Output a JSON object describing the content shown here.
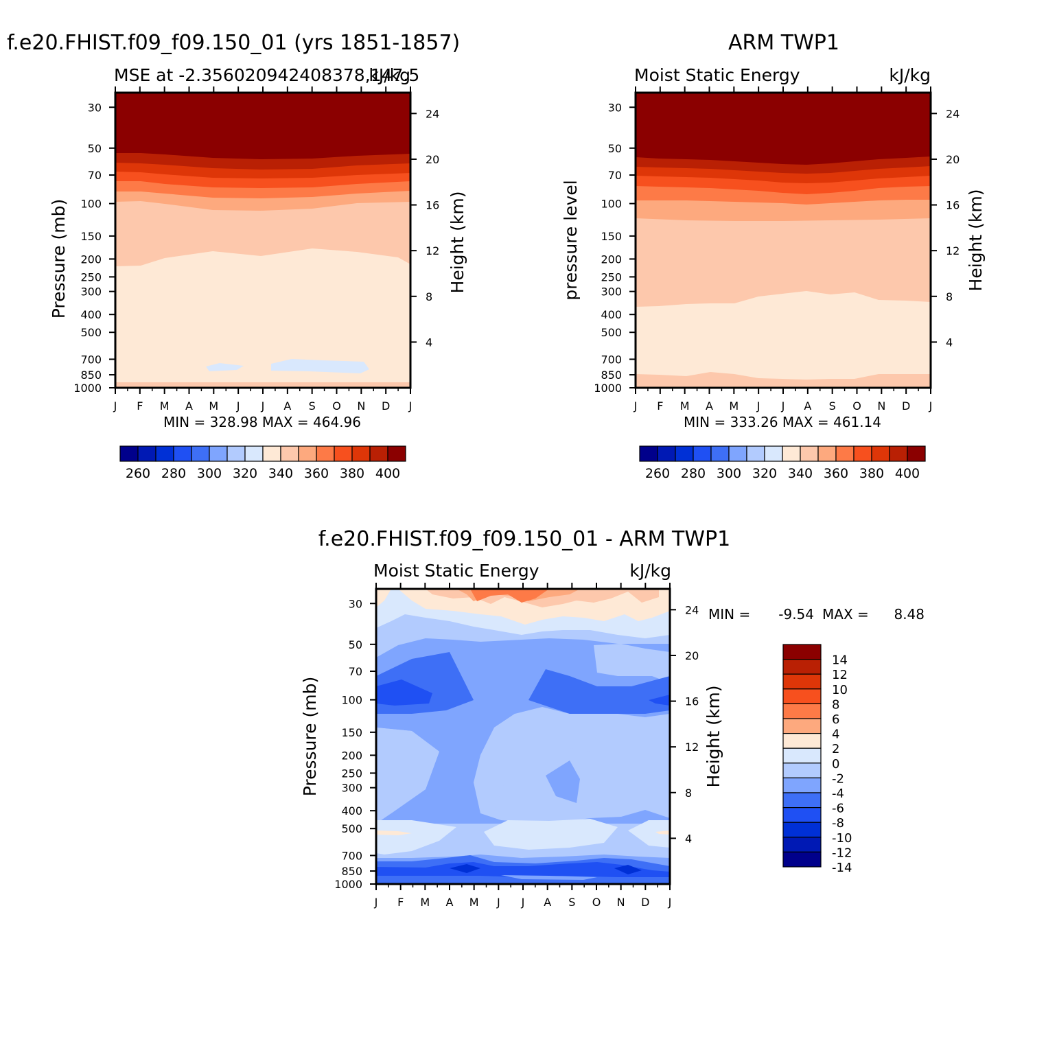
{
  "chart_data": [
    {
      "type": "heatmap",
      "title": "f.e20.FHIST.f09_f09.150_01 (yrs 1851-1857)",
      "subtitle_left": "MSE at -2.356020942408378,147.5",
      "subtitle_right": "kJ/kg",
      "ylabel": "Pressure (mb)",
      "ylabel_right": "Height (km)",
      "x_ticks": [
        "J",
        "F",
        "M",
        "A",
        "M",
        "J",
        "J",
        "A",
        "S",
        "O",
        "N",
        "D",
        "J"
      ],
      "y_ticks": [
        "30",
        "50",
        "70",
        "100",
        "150",
        "200",
        "250",
        "300",
        "400",
        "500",
        "700",
        "850",
        "1000"
      ],
      "y_ticks_right": [
        "24",
        "20",
        "16",
        "12",
        "8",
        "4"
      ],
      "stats": "MIN = 328.98 MAX = 464.96",
      "colorbar_labels": [
        "260",
        "280",
        "300",
        "320",
        "340",
        "360",
        "380",
        "400"
      ],
      "min": 328.98,
      "max": 464.96
    },
    {
      "type": "heatmap",
      "title": "ARM TWP1",
      "subtitle_left": "Moist Static Energy",
      "subtitle_right": "kJ/kg",
      "ylabel": "pressure level",
      "ylabel_right": "Height (km)",
      "x_ticks": [
        "J",
        "F",
        "M",
        "A",
        "M",
        "J",
        "J",
        "A",
        "S",
        "O",
        "N",
        "D",
        "J"
      ],
      "y_ticks": [
        "30",
        "50",
        "70",
        "100",
        "150",
        "200",
        "250",
        "300",
        "400",
        "500",
        "700",
        "850",
        "1000"
      ],
      "y_ticks_right": [
        "24",
        "20",
        "16",
        "12",
        "8",
        "4"
      ],
      "stats": "MIN = 333.26 MAX = 461.14",
      "colorbar_labels": [
        "260",
        "280",
        "300",
        "320",
        "340",
        "360",
        "380",
        "400"
      ],
      "min": 333.26,
      "max": 461.14
    },
    {
      "type": "heatmap",
      "title": "f.e20.FHIST.f09_f09.150_01 - ARM TWP1",
      "subtitle_left": "Moist Static Energy",
      "subtitle_right": "kJ/kg",
      "ylabel": "Pressure (mb)",
      "ylabel_right": "Height (km)",
      "x_ticks": [
        "J",
        "F",
        "M",
        "A",
        "M",
        "J",
        "J",
        "A",
        "S",
        "O",
        "N",
        "D",
        "J"
      ],
      "y_ticks": [
        "30",
        "50",
        "70",
        "100",
        "150",
        "200",
        "250",
        "300",
        "400",
        "500",
        "700",
        "850",
        "1000"
      ],
      "y_ticks_right": [
        "24",
        "20",
        "16",
        "12",
        "8",
        "4"
      ],
      "stats_min_label": "MIN =",
      "stats_min_value": "-9.54",
      "stats_max_label": "MAX =",
      "stats_max_value": "8.48",
      "colorbar_labels": [
        "14",
        "12",
        "10",
        "8",
        "6",
        "4",
        "2",
        "0",
        "-2",
        "-4",
        "-6",
        "-8",
        "-10",
        "-12",
        "-14"
      ],
      "min": -9.54,
      "max": 8.48
    }
  ],
  "colors": {
    "mse_palette": [
      "#00008b",
      "#0019b4",
      "#0030d6",
      "#1f50f3",
      "#3e6ff6",
      "#7fa5fe",
      "#b2cbfe",
      "#d9e8fd",
      "#fee9d6",
      "#fdc8ac",
      "#fda97e",
      "#fd7a47",
      "#f7501e",
      "#de3608",
      "#b92004",
      "#8b0000"
    ],
    "diff_palette": [
      "#8b0000",
      "#b92004",
      "#de3608",
      "#f7501e",
      "#fd7a47",
      "#fda97e",
      "#fee9d6",
      "#d9e8fd",
      "#b2cbfe",
      "#7fa5fe",
      "#3e6ff6",
      "#1f50f3",
      "#0030d6",
      "#0019b4",
      "#00008b"
    ]
  }
}
